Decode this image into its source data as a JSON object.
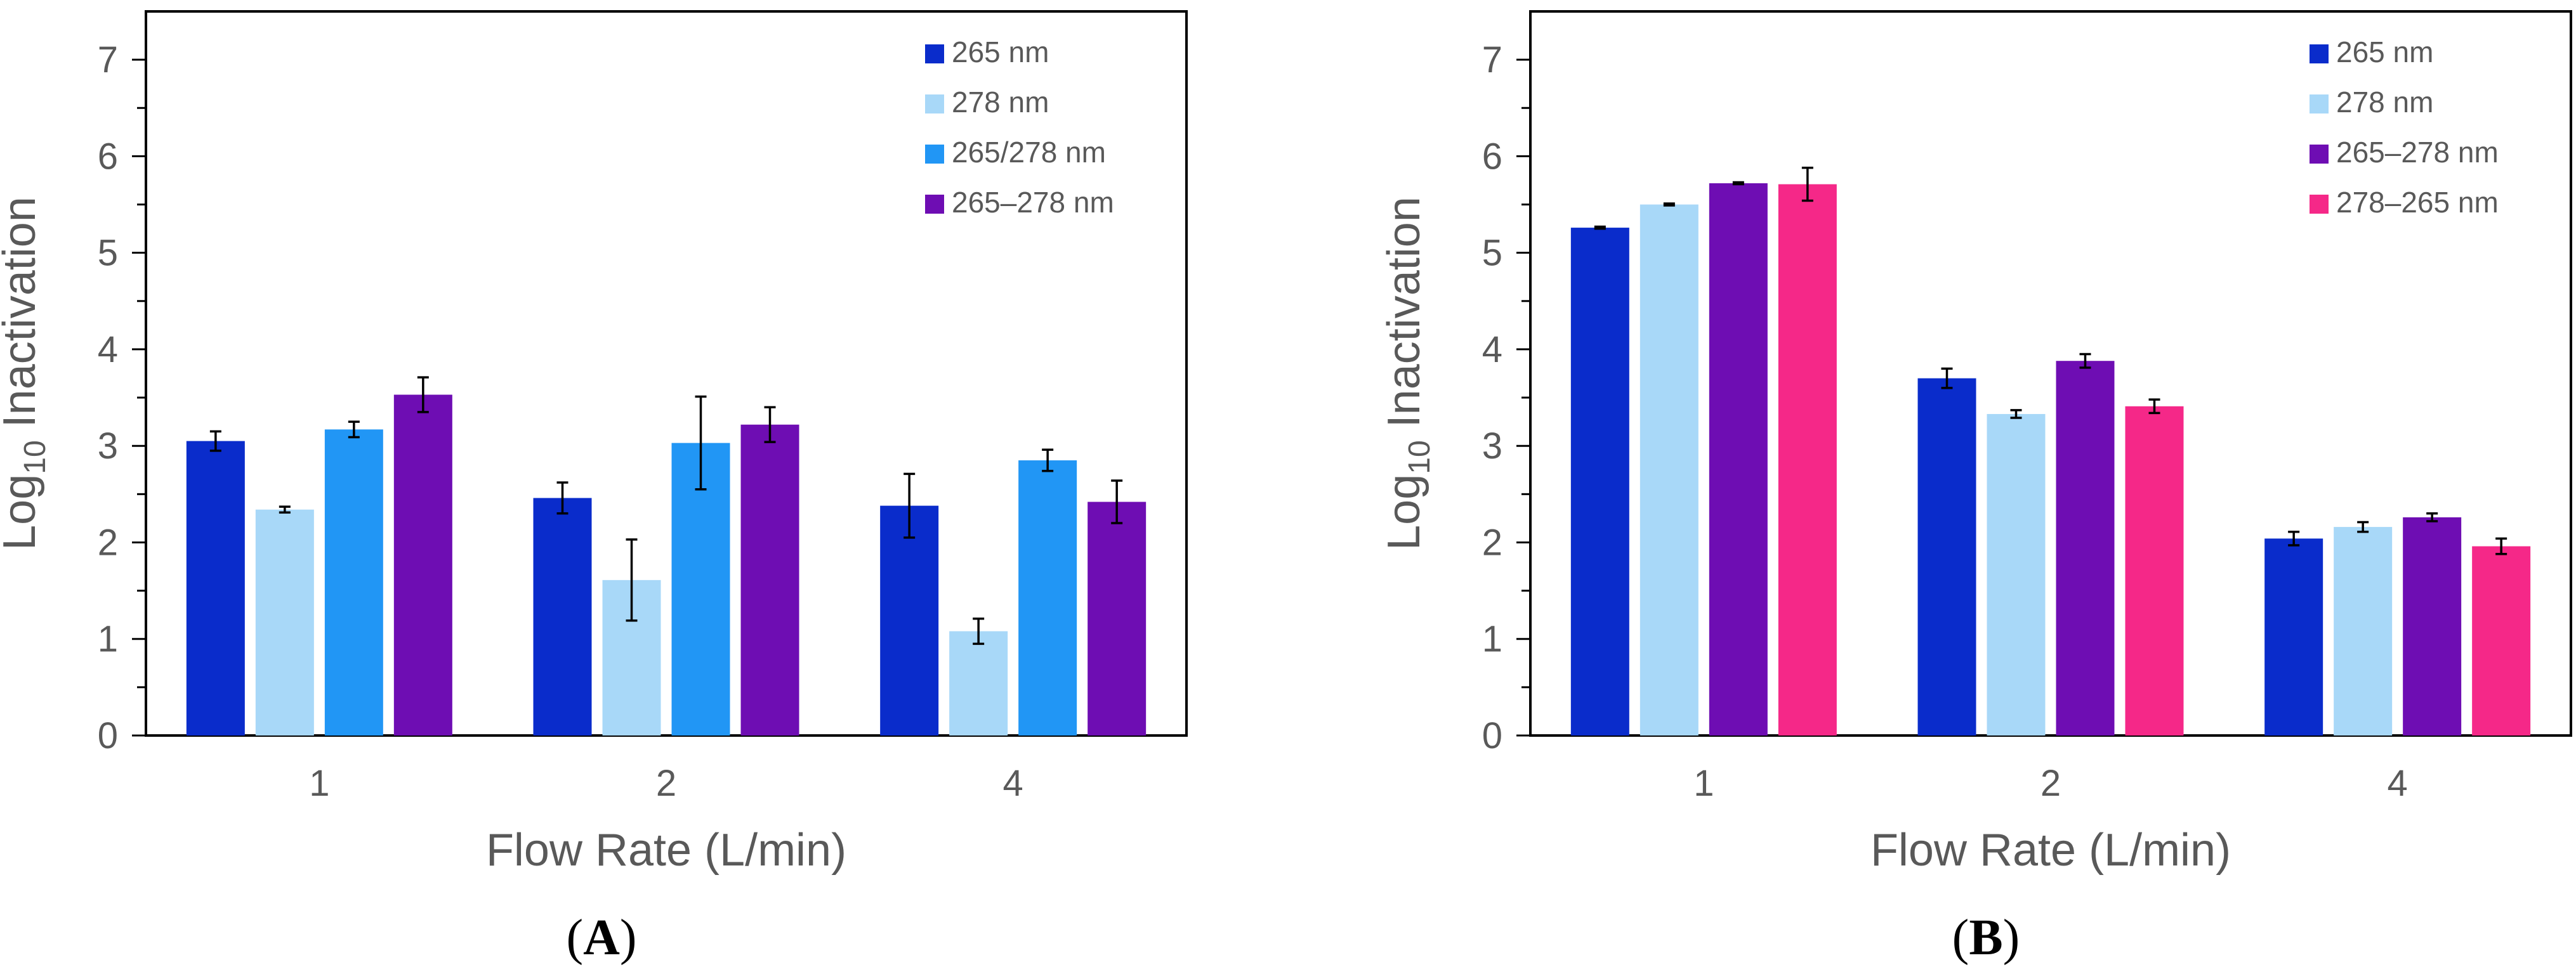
{
  "chart_data": [
    {
      "type": "bar",
      "panel_label": "A",
      "xlabel": "Flow Rate (L/min)",
      "ylabel_base": "Log",
      "ylabel_sub": "10",
      "ylabel_rest": " Inactivation",
      "ylim": [
        0,
        7.5
      ],
      "yticks": [
        "0",
        "1",
        "2",
        "3",
        "4",
        "5",
        "6",
        "7"
      ],
      "categories": [
        "1",
        "2",
        "4"
      ],
      "legend_position": "top-right",
      "series": [
        {
          "name": "265 nm",
          "color": "#0a2ccb",
          "values": [
            3.05,
            2.46,
            2.38
          ],
          "errors": [
            0.1,
            0.16,
            0.33
          ]
        },
        {
          "name": "278 nm",
          "color": "#a8d8f8",
          "values": [
            2.34,
            1.61,
            1.08
          ],
          "errors": [
            0.03,
            0.42,
            0.13
          ]
        },
        {
          "name": "265/278 nm",
          "color": "#2196f5",
          "values": [
            3.17,
            3.03,
            2.85
          ],
          "errors": [
            0.08,
            0.48,
            0.11
          ]
        },
        {
          "name": "265–278 nm",
          "color": "#6e0db3",
          "values": [
            3.53,
            3.22,
            2.42
          ],
          "errors": [
            0.18,
            0.18,
            0.22
          ]
        }
      ]
    },
    {
      "type": "bar",
      "panel_label": "B",
      "xlabel": "Flow Rate (L/min)",
      "ylabel_base": "Log",
      "ylabel_sub": "10",
      "ylabel_rest": " Inactivation",
      "ylim": [
        0,
        7.5
      ],
      "yticks": [
        "0",
        "1",
        "2",
        "3",
        "4",
        "5",
        "6",
        "7"
      ],
      "categories": [
        "1",
        "2",
        "4"
      ],
      "legend_position": "top-right",
      "series": [
        {
          "name": "265 nm",
          "color": "#0a2ccb",
          "values": [
            5.26,
            3.7,
            2.04
          ],
          "errors": [
            0.01,
            0.1,
            0.07
          ]
        },
        {
          "name": "278 nm",
          "color": "#a8d8f8",
          "values": [
            5.5,
            3.33,
            2.16
          ],
          "errors": [
            0.01,
            0.04,
            0.05
          ]
        },
        {
          "name": "265–278 nm",
          "color": "#6e0db3",
          "values": [
            5.72,
            3.88,
            2.26
          ],
          "errors": [
            0.01,
            0.07,
            0.04
          ]
        },
        {
          "name": "278–265 nm",
          "color": "#f52888",
          "values": [
            5.71,
            3.41,
            1.96
          ],
          "errors": [
            0.17,
            0.07,
            0.08
          ]
        }
      ]
    }
  ]
}
